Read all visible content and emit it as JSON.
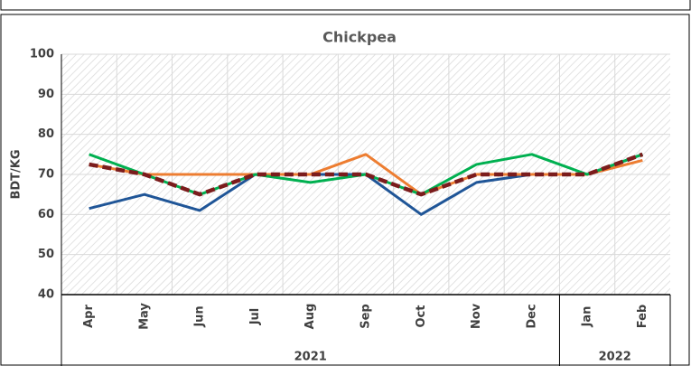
{
  "chart_data": {
    "type": "line",
    "title": "Chickpea",
    "y_label": "BDT/KG",
    "category_groups": [
      {
        "label": "2021",
        "categories": [
          "Apr",
          "May",
          "Jun",
          "Jul",
          "Aug",
          "Sep",
          "Oct",
          "Nov",
          "Dec"
        ]
      },
      {
        "label": "2022",
        "categories": [
          "Jan",
          "Feb"
        ]
      }
    ],
    "series": [
      {
        "color": "#1f5597",
        "values": [
          61.5,
          65,
          61,
          70,
          70,
          70,
          60,
          68,
          70,
          70,
          75
        ]
      },
      {
        "color": "#ed7d31",
        "values": [
          72.5,
          70,
          70,
          70,
          70,
          75,
          65,
          70,
          70,
          70,
          73.5
        ]
      },
      {
        "color": "#00b050",
        "values": [
          75,
          70,
          65,
          70,
          68,
          70,
          65,
          72.5,
          75,
          70,
          75
        ]
      },
      {
        "color": "#7b1c1c",
        "dashed": true,
        "values": [
          72.5,
          70,
          65,
          70,
          70,
          70,
          65,
          70,
          70,
          70,
          75
        ]
      }
    ],
    "ylim": [
      40,
      100
    ],
    "yticks": [
      40,
      50,
      60,
      70,
      80,
      90,
      100
    ],
    "grid": true
  }
}
